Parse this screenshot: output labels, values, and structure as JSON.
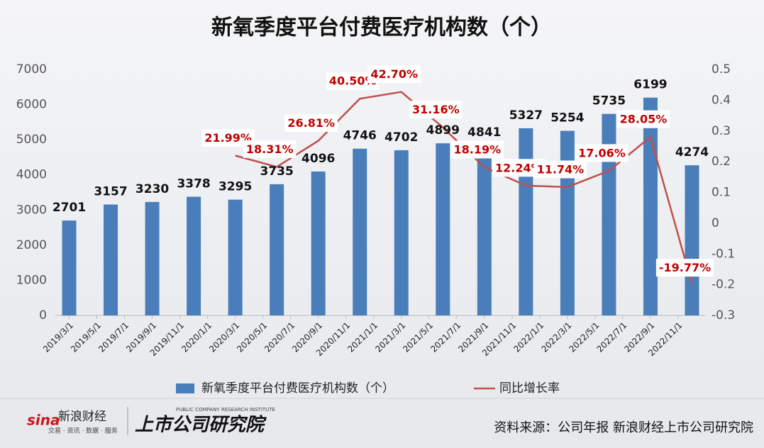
{
  "chart_data": {
    "type": "bar",
    "title": "新氧季度平台付费医疗机构数（个）",
    "x": [
      "2019/3/1",
      "2019/6/1",
      "2019/9/1",
      "2019/12/1",
      "2020/3/1",
      "2020/6/1",
      "2020/9/1",
      "2020/12/1",
      "2021/3/1",
      "2021/6/1",
      "2021/9/1",
      "2021/12/1",
      "2022/3/1",
      "2022/6/1",
      "2022/9/1",
      "2022/12/1"
    ],
    "xlim": [
      "2019/2/1",
      "2023/1/1"
    ],
    "xticks": [
      "2019/3/1",
      "2019/5/1",
      "2019/7/1",
      "2019/9/1",
      "2019/11/1",
      "2020/1/1",
      "2020/3/1",
      "2020/5/1",
      "2020/7/1",
      "2020/9/1",
      "2020/11/1",
      "2021/1/1",
      "2021/3/1",
      "2021/5/1",
      "2021/7/1",
      "2021/9/1",
      "2021/11/1",
      "2022/1/1",
      "2022/3/1",
      "2022/5/1",
      "2022/7/1",
      "2022/9/1",
      "2022/11/1"
    ],
    "series": [
      {
        "name": "新氧季度平台付费医疗机构数（个）",
        "type": "bar",
        "color": "#4a7ebb",
        "values": [
          2701,
          3157,
          3230,
          3378,
          3295,
          3735,
          4096,
          4746,
          4702,
          4899,
          4841,
          5327,
          5254,
          5735,
          6199,
          4274
        ]
      },
      {
        "name": "同比增长率",
        "type": "line",
        "axis": "y2",
        "color": "#c0504d",
        "values": [
          null,
          null,
          null,
          null,
          0.2199,
          0.1831,
          0.2681,
          0.405,
          0.427,
          0.3116,
          0.1819,
          0.1224,
          0.1174,
          0.1706,
          0.2805,
          -0.1977
        ],
        "value_labels": [
          null,
          null,
          null,
          null,
          "21.99%",
          "18.31%",
          "26.81%",
          "40.50%",
          "42.70%",
          "31.16%",
          "18.19%",
          "12.24%",
          "11.74%",
          "17.06%",
          "28.05%",
          "-19.77%"
        ]
      }
    ],
    "ylim": [
      0,
      7000
    ],
    "yticks": [
      0,
      1000,
      2000,
      3000,
      4000,
      5000,
      6000,
      7000
    ],
    "y2lim": [
      -0.3,
      0.5
    ],
    "y2ticks": [
      -0.3,
      -0.2,
      -0.1,
      0,
      0.1,
      0.2,
      0.3,
      0.4,
      0.5
    ],
    "source": "资料来源：公司年报 新浪财经上市公司研究院",
    "logo": {
      "sina": "sina",
      "brand": "新浪财经",
      "tagline": "交易 · 资讯 · 数据 · 服务",
      "institute": "上市公司研究院",
      "institute_en": "PUBLIC COMPANY RESEARCH INSTITUTE"
    }
  }
}
